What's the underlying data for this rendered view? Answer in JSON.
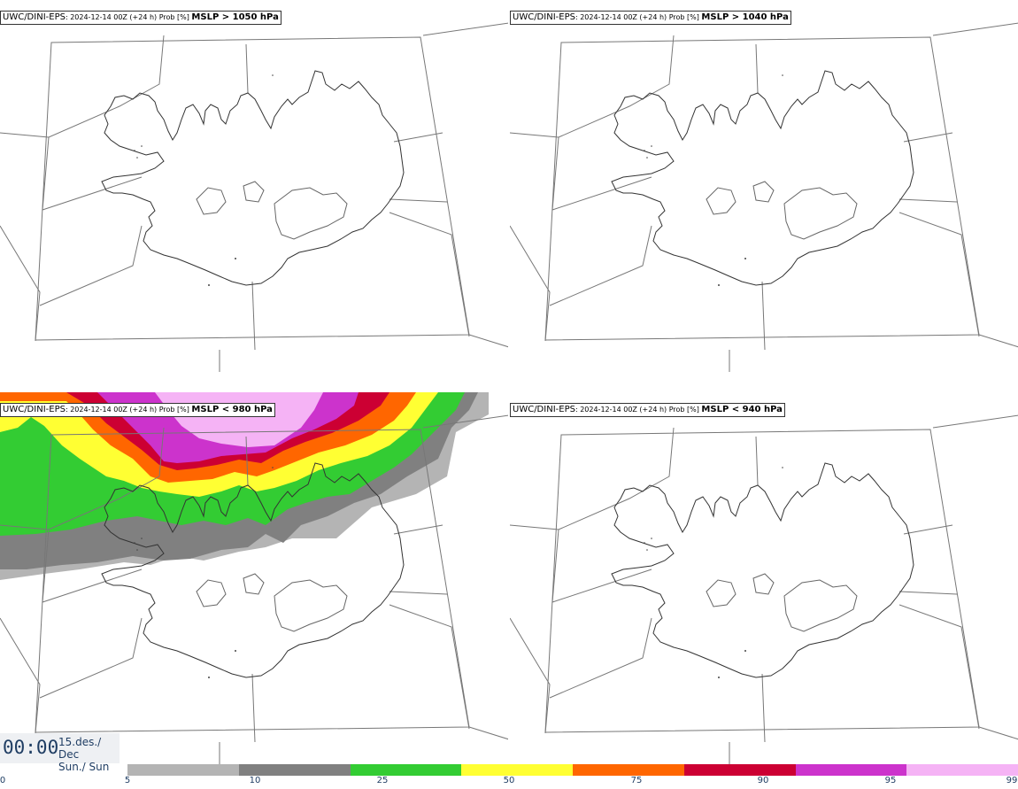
{
  "panels": [
    {
      "model": "UWC/DINI-EPS",
      "run": ": 2024-12-14 00Z (+24 h) Prob [%] ",
      "param": "MSLP > 1050 hPa",
      "filled": false
    },
    {
      "model": "UWC/DINI-EPS",
      "run": ": 2024-12-14 00Z (+24 h) Prob [%] ",
      "param": "MSLP > 1040 hPa",
      "filled": false
    },
    {
      "model": "UWC/DINI-EPS",
      "run": ": 2024-12-14 00Z (+24 h) Prob [%] ",
      "param": "MSLP < 980 hPa",
      "filled": true
    },
    {
      "model": "UWC/DINI-EPS",
      "run": ": 2024-12-14 00Z (+24 h) Prob [%] ",
      "param": "MSLP < 940 hPa",
      "filled": false
    }
  ],
  "time": {
    "value": "00:00",
    "date": "15.des./ Dec",
    "day": "Sun./ Sun"
  },
  "legend": {
    "ticks": [
      "0",
      "5",
      "10",
      "25",
      "50",
      "75",
      "90",
      "95",
      "99"
    ],
    "colors": [
      "#b4b4b4",
      "#808080",
      "#33cc33",
      "#ffff33",
      "#ff6600",
      "#cc0033",
      "#cc33cc",
      "#f5b3f5"
    ]
  }
}
